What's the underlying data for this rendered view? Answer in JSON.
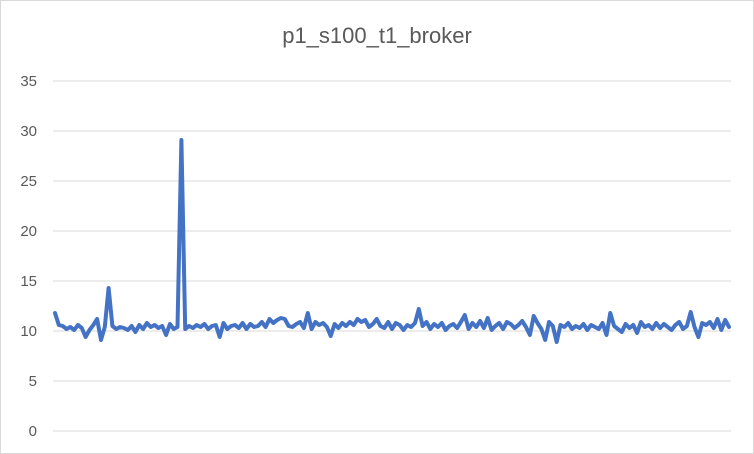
{
  "chart_data": {
    "type": "line",
    "title": "p1_s100_t1_broker",
    "xlabel": "",
    "ylabel": "",
    "ylim": [
      0,
      35
    ],
    "yticks": [
      0,
      5,
      10,
      15,
      20,
      25,
      30,
      35
    ],
    "grid": true,
    "legend": "none",
    "series_color": "#4472c4",
    "series": [
      {
        "values": [
          11.8,
          10.6,
          10.5,
          10.2,
          10.4,
          10.1,
          10.6,
          10.3,
          9.4,
          10.1,
          10.6,
          11.2,
          9.1,
          10.4,
          14.3,
          10.5,
          10.2,
          10.4,
          10.3,
          10.1,
          10.5,
          9.9,
          10.6,
          10.2,
          10.8,
          10.4,
          10.6,
          10.3,
          10.5,
          9.6,
          10.7,
          10.2,
          10.4,
          29.1,
          10.2,
          10.5,
          10.3,
          10.6,
          10.4,
          10.7,
          10.2,
          10.5,
          10.6,
          9.4,
          10.8,
          10.2,
          10.5,
          10.6,
          10.3,
          10.8,
          10.2,
          10.7,
          10.4,
          10.5,
          10.9,
          10.4,
          11.2,
          10.8,
          11.1,
          11.3,
          11.2,
          10.5,
          10.4,
          10.7,
          10.9,
          10.3,
          11.8,
          10.2,
          10.9,
          10.6,
          10.8,
          10.4,
          9.5,
          10.7,
          10.3,
          10.8,
          10.5,
          10.9,
          10.6,
          11.2,
          10.9,
          11.1,
          10.4,
          10.7,
          11.2,
          10.5,
          10.3,
          10.9,
          10.2,
          10.8,
          10.6,
          10.1,
          10.6,
          10.4,
          10.8,
          12.2,
          10.5,
          10.9,
          10.2,
          10.7,
          10.4,
          10.8,
          10.1,
          10.5,
          10.7,
          10.3,
          10.9,
          11.6,
          10.2,
          10.8,
          10.4,
          11.0,
          10.3,
          11.3,
          10.1,
          10.5,
          10.8,
          10.2,
          10.9,
          10.7,
          10.3,
          10.6,
          11.0,
          10.4,
          9.6,
          11.5,
          10.8,
          10.2,
          9.1,
          10.9,
          10.5,
          8.9,
          10.6,
          10.4,
          10.8,
          10.2,
          10.5,
          10.3,
          10.7,
          10.1,
          10.6,
          10.4,
          10.2,
          10.8,
          9.6,
          11.8,
          10.5,
          10.2,
          9.9,
          10.7,
          10.3,
          10.6,
          9.8,
          10.9,
          10.4,
          10.6,
          10.2,
          10.8,
          10.3,
          10.7,
          10.4,
          10.1,
          10.6,
          10.9,
          10.2,
          10.5,
          11.9,
          10.4,
          9.4,
          10.8,
          10.6,
          10.9,
          10.3,
          11.2,
          10.1,
          11.1,
          10.4
        ]
      }
    ]
  }
}
